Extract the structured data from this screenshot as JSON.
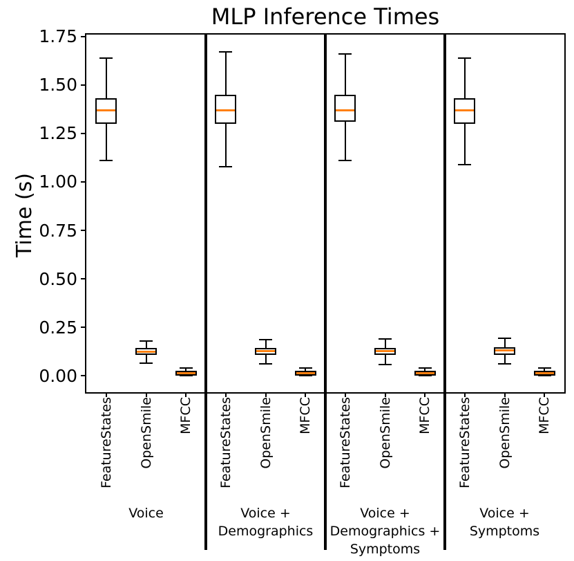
{
  "chart_data": {
    "type": "boxplot",
    "title": "MLP Inference Times",
    "ylabel": "Time (s)",
    "ylim": [
      -0.085,
      1.76
    ],
    "grid": false,
    "median_color": "#ff7f0e",
    "box_edge_color": "#000000",
    "yticks": [
      {
        "value": 0.0,
        "label": "0.00"
      },
      {
        "value": 0.25,
        "label": "0.25"
      },
      {
        "value": 0.5,
        "label": "0.50"
      },
      {
        "value": 0.75,
        "label": "0.75"
      },
      {
        "value": 1.0,
        "label": "1.00"
      },
      {
        "value": 1.25,
        "label": "1.25"
      },
      {
        "value": 1.5,
        "label": "1.50"
      },
      {
        "value": 1.75,
        "label": "1.75"
      }
    ],
    "groups": [
      {
        "label_lines": [
          "Voice"
        ],
        "boxes": [
          {
            "method": "FeatureStates",
            "whislo": 1.11,
            "q1": 1.3,
            "med": 1.37,
            "q3": 1.43,
            "whishi": 1.64
          },
          {
            "method": "OpenSmile",
            "whislo": 0.065,
            "q1": 0.106,
            "med": 0.125,
            "q3": 0.144,
            "whishi": 0.178
          },
          {
            "method": "MFCC",
            "whislo": 0.0,
            "q1": 0.001,
            "med": 0.012,
            "q3": 0.024,
            "whishi": 0.04
          }
        ]
      },
      {
        "label_lines": [
          "Voice +",
          "Demographics"
        ],
        "boxes": [
          {
            "method": "FeatureStates",
            "whislo": 1.08,
            "q1": 1.3,
            "med": 1.37,
            "q3": 1.45,
            "whishi": 1.67
          },
          {
            "method": "OpenSmile",
            "whislo": 0.061,
            "q1": 0.107,
            "med": 0.127,
            "q3": 0.144,
            "whishi": 0.186
          },
          {
            "method": "MFCC",
            "whislo": 0.0,
            "q1": 0.001,
            "med": 0.012,
            "q3": 0.024,
            "whishi": 0.04
          }
        ]
      },
      {
        "label_lines": [
          "Voice +",
          "Demographics +",
          "Symptoms"
        ],
        "boxes": [
          {
            "method": "FeatureStates",
            "whislo": 1.11,
            "q1": 1.31,
            "med": 1.37,
            "q3": 1.45,
            "whishi": 1.66
          },
          {
            "method": "OpenSmile",
            "whislo": 0.058,
            "q1": 0.107,
            "med": 0.127,
            "q3": 0.144,
            "whishi": 0.189
          },
          {
            "method": "MFCC",
            "whislo": 0.0,
            "q1": 0.001,
            "med": 0.012,
            "q3": 0.024,
            "whishi": 0.04
          }
        ]
      },
      {
        "label_lines": [
          "Voice +",
          "Symptoms"
        ],
        "boxes": [
          {
            "method": "FeatureStates",
            "whislo": 1.09,
            "q1": 1.3,
            "med": 1.37,
            "q3": 1.43,
            "whishi": 1.64
          },
          {
            "method": "OpenSmile",
            "whislo": 0.061,
            "q1": 0.108,
            "med": 0.13,
            "q3": 0.147,
            "whishi": 0.195
          },
          {
            "method": "MFCC",
            "whislo": 0.0,
            "q1": 0.001,
            "med": 0.012,
            "q3": 0.024,
            "whishi": 0.04
          }
        ]
      }
    ]
  }
}
